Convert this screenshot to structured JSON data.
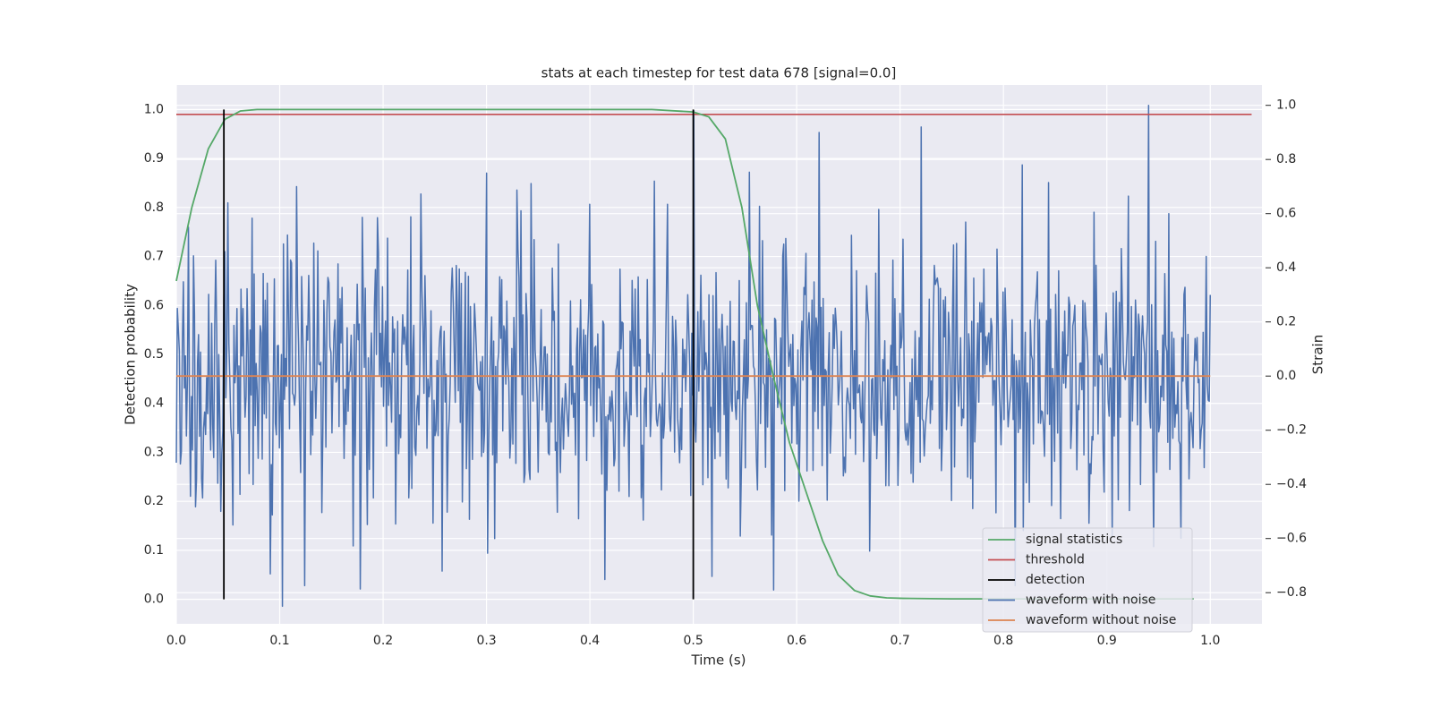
{
  "chart_data": {
    "type": "line",
    "title": "stats at each timestep for test data 678 [signal=0.0]",
    "xlabel": "Time (s)",
    "ylabel": "Detection probability",
    "ylabel_right": "Strain",
    "xlim": [
      0.0,
      1.05
    ],
    "ylim": [
      -0.05,
      1.05
    ],
    "ylim_right": [
      -0.915,
      1.075
    ],
    "x_ticks": [
      0.0,
      0.1,
      0.2,
      0.3,
      0.4,
      0.5,
      0.6,
      0.7,
      0.8,
      0.9,
      1.0
    ],
    "x_tick_labels": [
      "0.0",
      "0.1",
      "0.2",
      "0.3",
      "0.4",
      "0.5",
      "0.6",
      "0.7",
      "0.8",
      "0.9",
      "1.0"
    ],
    "y_ticks": [
      0.0,
      0.1,
      0.2,
      0.3,
      0.4,
      0.5,
      0.6,
      0.7,
      0.8,
      0.9,
      1.0
    ],
    "y_tick_labels": [
      "0.0",
      "0.1",
      "0.2",
      "0.3",
      "0.4",
      "0.5",
      "0.6",
      "0.7",
      "0.8",
      "0.9",
      "1.0"
    ],
    "y_right_ticks": [
      -0.8,
      -0.6,
      -0.4,
      -0.2,
      0.0,
      0.2,
      0.4,
      0.6,
      0.8,
      1.0
    ],
    "y_right_tick_labels": [
      "−0.8",
      "−0.6",
      "−0.4",
      "−0.2",
      "0.0",
      "0.2",
      "0.4",
      "0.6",
      "0.8",
      "1.0"
    ],
    "grid": true,
    "legend_position": "lower-right",
    "colors": {
      "background": "#eaeaf2",
      "grid": "#ffffff",
      "signal_statistics": "#55a868",
      "threshold": "#c44e52",
      "detection": "#000000",
      "waveform_with_noise": "#4c72b0",
      "waveform_without_noise": "#dd8452"
    },
    "series": [
      {
        "name": "signal statistics",
        "axis": "left",
        "x": [
          0.0,
          0.015,
          0.031,
          0.047,
          0.062,
          0.078,
          0.1,
          0.2,
          0.3,
          0.4,
          0.46,
          0.5,
          0.515,
          0.531,
          0.547,
          0.562,
          0.578,
          0.593,
          0.609,
          0.625,
          0.64,
          0.656,
          0.671,
          0.687,
          0.703,
          0.75,
          0.85,
          0.95,
          0.984
        ],
        "y": [
          0.65,
          0.8,
          0.92,
          0.98,
          0.997,
          1.0,
          1.0,
          1.0,
          1.0,
          1.0,
          1.0,
          0.995,
          0.985,
          0.94,
          0.8,
          0.6,
          0.45,
          0.32,
          0.22,
          0.12,
          0.05,
          0.018,
          0.007,
          0.003,
          0.002,
          0.001,
          0.001,
          0.001,
          0.001
        ]
      },
      {
        "name": "threshold",
        "axis": "left",
        "x": [
          0.0,
          1.04
        ],
        "y": [
          0.99,
          0.99
        ]
      },
      {
        "name": "detection",
        "axis": "left",
        "x": [
          0.046,
          0.5
        ],
        "y_range": [
          0.0,
          1.0
        ]
      },
      {
        "name": "waveform with noise",
        "axis": "right",
        "x_range": [
          0.0,
          1.0
        ],
        "sample_count": 1024,
        "anchor_points": [
          [
            0.0,
            -0.32
          ],
          [
            0.012,
            0.55
          ],
          [
            0.025,
            -0.45
          ],
          [
            0.05,
            0.64
          ],
          [
            0.055,
            -0.55
          ],
          [
            0.116,
            0.7
          ],
          [
            0.3,
            0.75
          ],
          [
            0.308,
            -0.6
          ],
          [
            0.462,
            0.72
          ],
          [
            0.5,
            0.98
          ],
          [
            0.518,
            -0.74
          ],
          [
            0.578,
            -0.79
          ],
          [
            0.622,
            0.9
          ],
          [
            0.72,
            0.92
          ],
          [
            0.818,
            0.78
          ],
          [
            0.94,
            1.0
          ],
          [
            0.945,
            -0.63
          ],
          [
            0.96,
            0.6
          ],
          [
            1.0,
            0.3
          ]
        ],
        "amplitude_std": 0.26
      },
      {
        "name": "waveform without noise",
        "axis": "right",
        "x": [
          0.0,
          1.0
        ],
        "y": [
          0.0,
          0.0
        ]
      }
    ]
  }
}
